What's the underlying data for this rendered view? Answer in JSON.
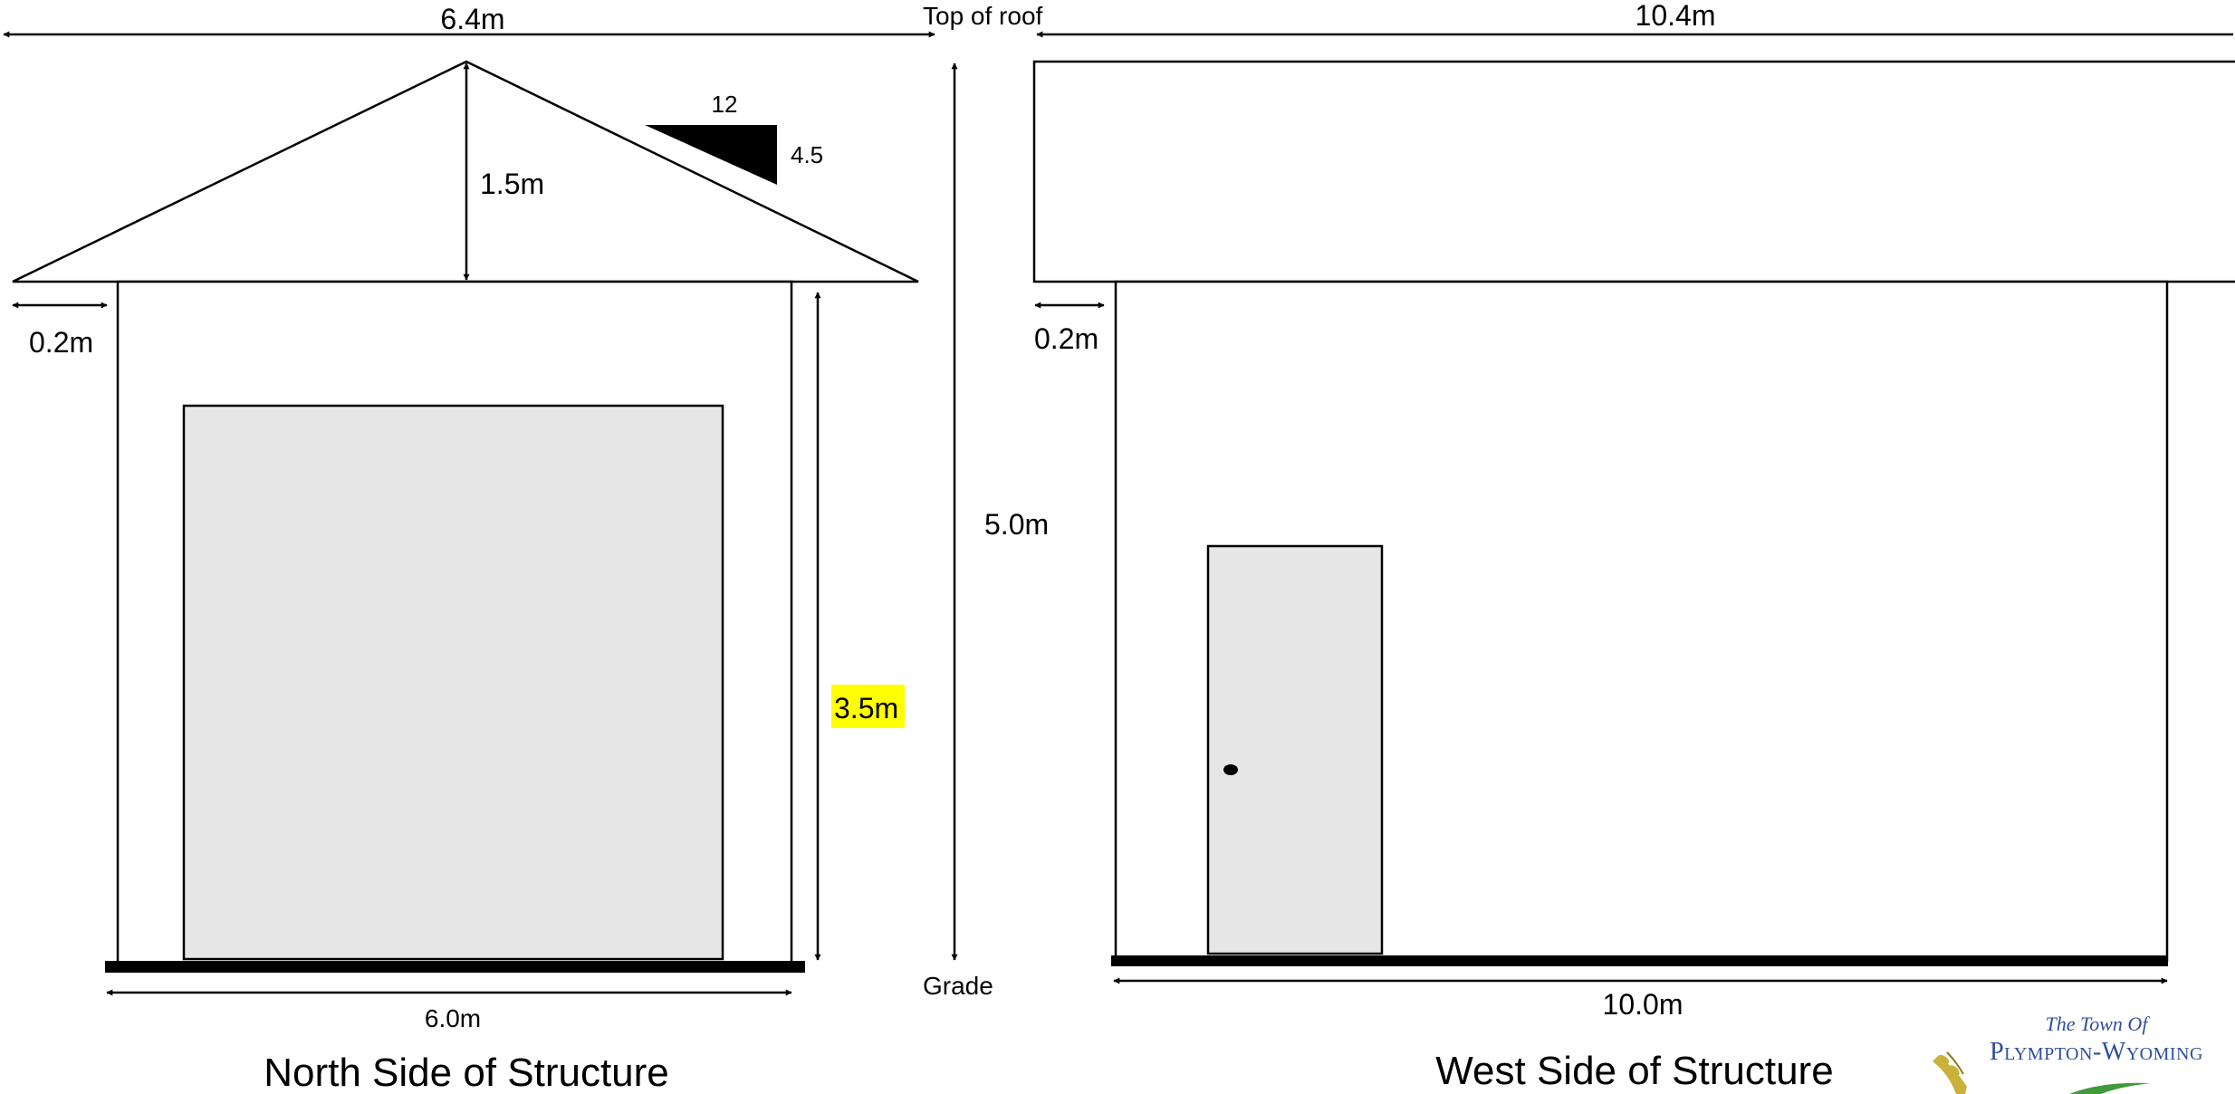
{
  "colors": {
    "line": "#000000",
    "panel": "#e6e6e6",
    "highlight": "#ffff00",
    "logo_text": "#2e4f9c",
    "logo_wheat": "#c9b13a",
    "logo_green": "#3e9a3a"
  },
  "north": {
    "caption": "North Side of Structure",
    "overall_width": "6.4m",
    "roof_height": "1.5m",
    "slope_run": "12",
    "slope_rise": "4.5",
    "overhang": "0.2m",
    "door_height": "3.5m",
    "wall_width": "6.0m"
  },
  "center": {
    "top_label": "Top of roof",
    "total_height": "5.0m",
    "bottom_label": "Grade"
  },
  "west": {
    "caption": "West Side of Structure",
    "overall_width": "10.4m",
    "overhang": "0.2m",
    "wall_width": "10.0m"
  },
  "logo": {
    "line1": "The Town Of",
    "line2": "Plympton-Wyoming"
  }
}
